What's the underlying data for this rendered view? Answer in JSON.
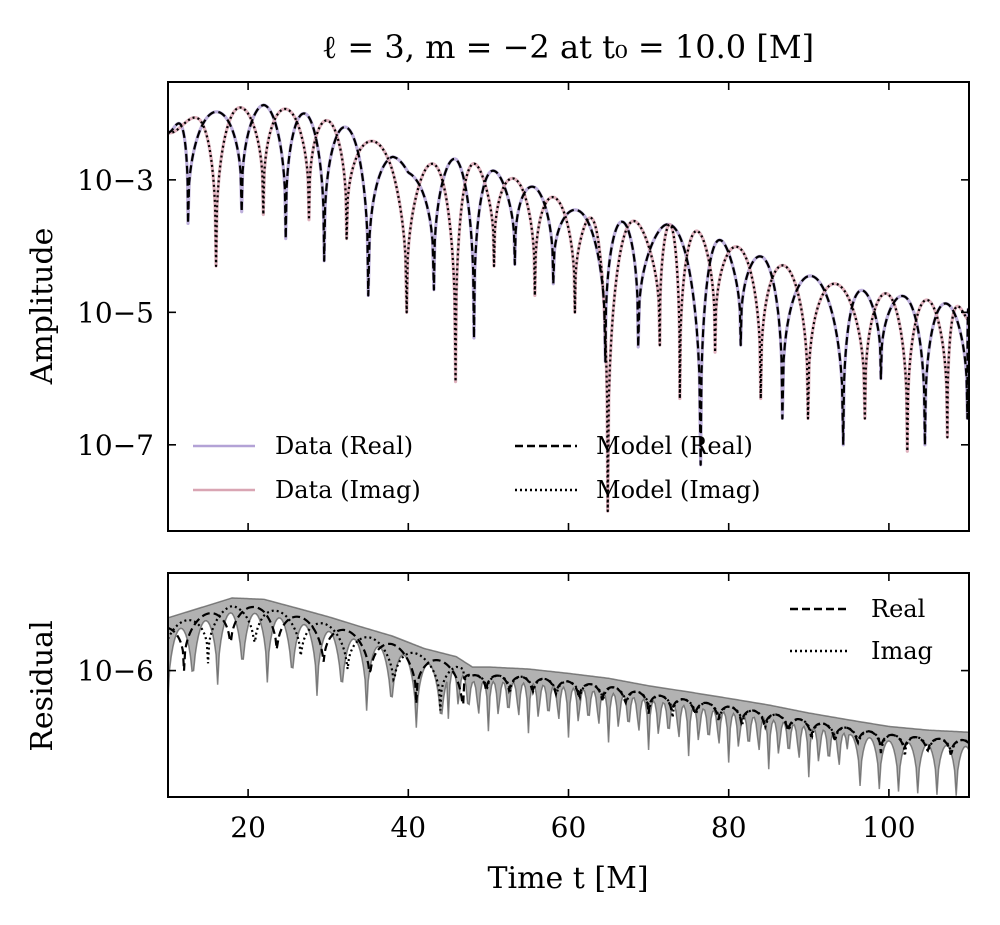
{
  "chart_data": [
    {
      "type": "line",
      "panel": "top",
      "title": "ℓ = 3, m = −2 at t₀ = 10.0 [M]",
      "xlabel": "",
      "ylabel": "Amplitude",
      "yscale": "log",
      "xlim": [
        10,
        110
      ],
      "ylim": [
        5e-09,
        0.03
      ],
      "x_ticks": [
        20,
        40,
        60,
        80,
        100
      ],
      "y_ticks": [
        {
          "value": 0.001,
          "label": "10−3"
        },
        {
          "value": 1e-05,
          "label": "10−5"
        },
        {
          "value": 1e-07,
          "label": "10−7"
        }
      ],
      "legend": {
        "placement": "bottom-left",
        "entries": [
          {
            "label": "Data (Real)",
            "color": "#b3a2d6",
            "style": "solid"
          },
          {
            "label": "Data (Imag)",
            "color": "#d9a5b3",
            "style": "solid"
          },
          {
            "label": "Model (Real)",
            "color": "#000000",
            "style": "dashed"
          },
          {
            "label": "Model (Imag)",
            "color": "#000000",
            "style": "dotted"
          }
        ]
      },
      "series": [
        {
          "name": "Data (Real)",
          "color": "#b3a2d6",
          "style": "solid",
          "component": "real"
        },
        {
          "name": "Data (Imag)",
          "color": "#d9a5b3",
          "style": "solid",
          "component": "imag"
        },
        {
          "name": "Model (Real)",
          "color": "#000000",
          "style": "dashed",
          "component": "real"
        },
        {
          "name": "Model (Imag)",
          "color": "#000000",
          "style": "dotted",
          "component": "imag"
        }
      ],
      "envelope": {
        "x": [
          10,
          14,
          18,
          22,
          26,
          30,
          34,
          38,
          40,
          44,
          46,
          48,
          52,
          56,
          60,
          64,
          68,
          72,
          76,
          80,
          84,
          88,
          92,
          96,
          100,
          104,
          108,
          110
        ],
        "y": [
          0.0062,
          0.0095,
          0.012,
          0.0135,
          0.011,
          0.0078,
          0.0052,
          0.0026,
          0.0014,
          0.0019,
          0.0021,
          0.0018,
          0.0012,
          0.00075,
          0.00042,
          0.00022,
          0.00024,
          0.00022,
          0.00017,
          0.00011,
          7e-05,
          4.5e-05,
          3e-05,
          2.2e-05,
          1.9e-05,
          1.6e-05,
          1.3e-05,
          1.1e-05
        ]
      },
      "cusps": {
        "real": [
          {
            "x": 12.5,
            "y": 0.00022
          },
          {
            "x": 19.2,
            "y": 0.00033
          },
          {
            "x": 24.7,
            "y": 0.00013
          },
          {
            "x": 29.5,
            "y": 6e-05
          },
          {
            "x": 35.0,
            "y": 1.8e-05
          },
          {
            "x": 43.2,
            "y": 2.2e-05
          },
          {
            "x": 48.2,
            "y": 4.1e-06
          },
          {
            "x": 53.3,
            "y": 5.3e-05
          },
          {
            "x": 58.1,
            "y": 2.7e-05
          },
          {
            "x": 64.6,
            "y": 1.8e-06
          },
          {
            "x": 68.7,
            "y": 3e-06
          },
          {
            "x": 76.5,
            "y": 5e-08
          },
          {
            "x": 81.5,
            "y": 3.2e-06
          },
          {
            "x": 86.7,
            "y": 2.5e-07
          },
          {
            "x": 94.3,
            "y": 1e-07
          },
          {
            "x": 99.0,
            "y": 1e-06
          },
          {
            "x": 104.5,
            "y": 1e-07
          },
          {
            "x": 109.8,
            "y": 2.5e-07
          }
        ],
        "imag": [
          {
            "x": 16.0,
            "y": 5e-05
          },
          {
            "x": 21.9,
            "y": 0.0003
          },
          {
            "x": 27.6,
            "y": 0.00025
          },
          {
            "x": 32.3,
            "y": 0.00013
          },
          {
            "x": 39.8,
            "y": 1e-05
          },
          {
            "x": 45.9,
            "y": 9e-07
          },
          {
            "x": 50.7,
            "y": 5e-05
          },
          {
            "x": 55.8,
            "y": 1.8e-05
          },
          {
            "x": 60.8,
            "y": 1e-05
          },
          {
            "x": 64.9,
            "y": 1e-08
          },
          {
            "x": 71.4,
            "y": 3.2e-06
          },
          {
            "x": 73.9,
            "y": 5e-07
          },
          {
            "x": 78.3,
            "y": 2.5e-06
          },
          {
            "x": 84.0,
            "y": 5e-07
          },
          {
            "x": 89.9,
            "y": 2.5e-07
          },
          {
            "x": 97.0,
            "y": 2.5e-07
          },
          {
            "x": 102.3,
            "y": 8e-08
          },
          {
            "x": 107.3,
            "y": 1.3e-07
          }
        ]
      }
    },
    {
      "type": "line",
      "panel": "bottom",
      "title": "",
      "xlabel": "Time t [M]",
      "ylabel": "Residual",
      "yscale": "log",
      "xlim": [
        10,
        110
      ],
      "ylim": [
        4e-08,
        1.2e-05
      ],
      "x_ticks": [
        20,
        40,
        60,
        80,
        100
      ],
      "y_ticks": [
        {
          "value": 1e-06,
          "label": "10−6"
        }
      ],
      "legend": {
        "placement": "top-right",
        "entries": [
          {
            "label": "Real",
            "color": "#000000",
            "style": "dashed"
          },
          {
            "label": "Imag",
            "color": "#000000",
            "style": "dotted"
          }
        ]
      },
      "series": [
        {
          "name": "Real",
          "color": "#000000",
          "style": "dashed",
          "component": "real"
        },
        {
          "name": "Imag",
          "color": "#000000",
          "style": "dotted",
          "component": "imag"
        }
      ],
      "band_color": "#555555",
      "envelope": {
        "x": [
          10,
          14,
          18,
          22,
          26,
          30,
          34,
          38,
          42,
          46,
          48,
          50,
          55,
          60,
          65,
          70,
          75,
          80,
          85,
          90,
          95,
          100,
          105,
          110
        ],
        "y": [
          3.5e-06,
          4.5e-06,
          5.8e-06,
          5.6e-06,
          4.5e-06,
          3.6e-06,
          2.8e-06,
          2.2e-06,
          1.6e-06,
          1.3e-06,
          1e-06,
          1e-06,
          9.5e-07,
          8.5e-07,
          7.5e-07,
          6.2e-07,
          5.3e-07,
          4.5e-07,
          3.8e-07,
          3.1e-07,
          2.6e-07,
          2.2e-07,
          2e-07,
          1.9e-07
        ]
      }
    }
  ]
}
